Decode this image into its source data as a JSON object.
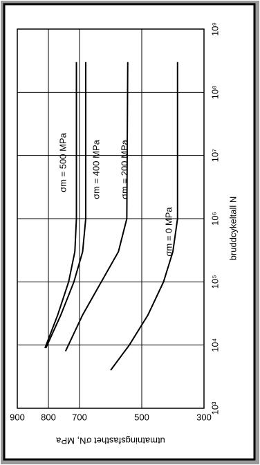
{
  "chart_data": {
    "type": "line",
    "y_label": "utmatningsfasthet σN, MPa",
    "x_label": "bruddcykeltall N",
    "log_x": true,
    "grid": true,
    "xlim": [
      1000,
      1000000000
    ],
    "xticks": [
      {
        "value": 1000,
        "label": "10³"
      },
      {
        "value": 10000,
        "label": "10⁴"
      },
      {
        "value": 100000,
        "label": "10⁵"
      },
      {
        "value": 1000000,
        "label": "10⁶"
      },
      {
        "value": 10000000,
        "label": "10⁷"
      },
      {
        "value": 100000000,
        "label": "10⁸"
      },
      {
        "value": 1000000000,
        "label": "10⁹"
      }
    ],
    "ylim": [
      300,
      900
    ],
    "yticks": [
      300,
      500,
      700,
      800,
      900
    ],
    "series": [
      {
        "name": "σm = 500 MPa",
        "color": "#000000",
        "x": [
          9000,
          30000,
          100000,
          300000,
          1000000,
          300000000
        ],
        "values": [
          811,
          770,
          735,
          715,
          710,
          710
        ]
      },
      {
        "name": "σm = 400 MPa",
        "color": "#000000",
        "x": [
          9000,
          30000,
          100000,
          300000,
          1000000,
          300000000
        ],
        "values": [
          808,
          760,
          718,
          690,
          680,
          680
        ]
      },
      {
        "name": "σm = 200 MPa",
        "color": "#000000",
        "x": [
          8000,
          30000,
          100000,
          300000,
          1000000,
          300000000
        ],
        "values": [
          745,
          690,
          630,
          575,
          548,
          545
        ]
      },
      {
        "name": "σm = 0 MPa",
        "color": "#000000",
        "x": [
          4000,
          10000,
          30000,
          100000,
          300000,
          1000000,
          300000000
        ],
        "values": [
          600,
          540,
          480,
          430,
          400,
          385,
          385
        ]
      }
    ]
  }
}
